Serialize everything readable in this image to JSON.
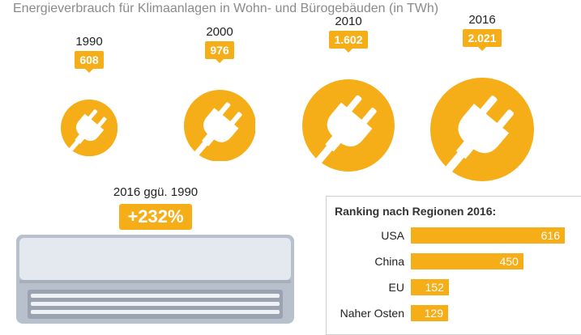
{
  "title": "Energieverbrauch für Klimaanlagen in Wohn- und Bürogebäuden (in TWh)",
  "chart_data": [
    {
      "type": "bubble",
      "categories": [
        "1990",
        "2000",
        "2010",
        "2016"
      ],
      "values": [
        608,
        976,
        1602,
        2021
      ],
      "value_labels": [
        "608",
        "976",
        "1.602",
        "2.021"
      ],
      "unit": "TWh",
      "colors": {
        "accent": "#f5ae17",
        "icon": "#ffffff"
      },
      "icon": "power-plug-icon"
    },
    {
      "type": "bar",
      "orientation": "horizontal",
      "title": "Ranking nach Regionen 2016:",
      "categories": [
        "USA",
        "China",
        "EU",
        "Naher Osten"
      ],
      "values": [
        616,
        450,
        152,
        129
      ],
      "value_labels": [
        "616",
        "450",
        "152",
        "129"
      ]
    }
  ],
  "comparison": {
    "label": "2016 ggü. 1990",
    "value": "+232%",
    "icon": "air-conditioner-icon"
  }
}
